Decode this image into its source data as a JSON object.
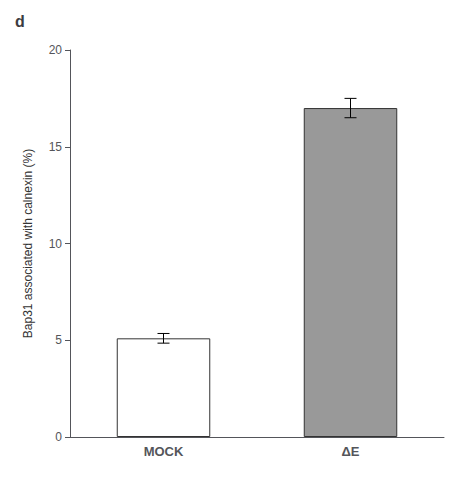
{
  "chart_data": {
    "type": "bar",
    "title": "d",
    "categories": [
      "MOCK",
      "ΔE"
    ],
    "values": [
      5.1,
      17.0
    ],
    "errors": [
      0.25,
      0.5
    ],
    "colors": [
      "white",
      "#999999"
    ],
    "ylabel": "Bap31 associated with calnexin (%)",
    "ylim": [
      0,
      20
    ],
    "yticks": [
      0,
      5,
      10,
      15,
      20
    ],
    "grid": false
  }
}
